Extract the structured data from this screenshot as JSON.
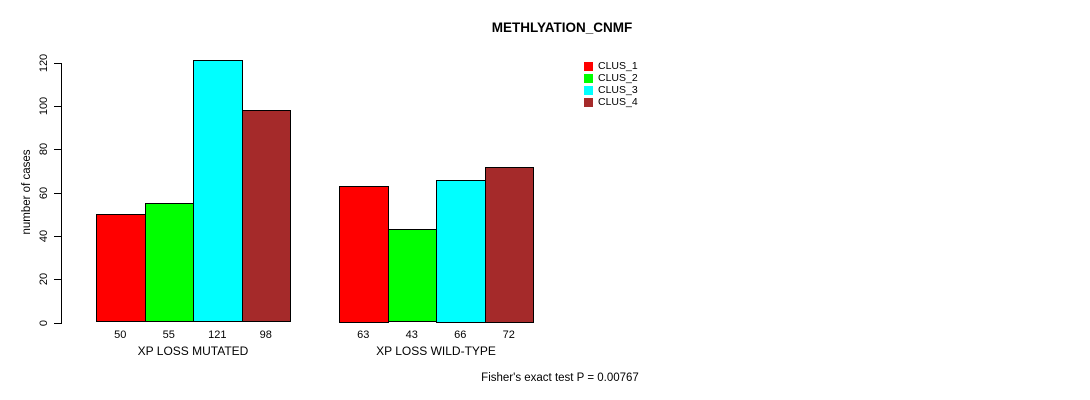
{
  "chart_data": {
    "type": "bar",
    "title": "METHLYATION_CNMF",
    "ylabel": "number of cases",
    "ylim": [
      0,
      120
    ],
    "yticks": [
      0,
      20,
      40,
      60,
      80,
      100,
      120
    ],
    "categories": [
      "XP LOSS MUTATED",
      "XP LOSS WILD-TYPE"
    ],
    "series": [
      {
        "name": "CLUS_1",
        "color": "#FF0000",
        "values": [
          50,
          63
        ]
      },
      {
        "name": "CLUS_2",
        "color": "#00FF00",
        "values": [
          55,
          43
        ]
      },
      {
        "name": "CLUS_3",
        "color": "#00FFFF",
        "values": [
          121,
          66
        ]
      },
      {
        "name": "CLUS_4",
        "color": "#A52A2A",
        "values": [
          98,
          72
        ]
      }
    ],
    "bar_value_labels": true,
    "legend_position": "top-right",
    "grid": false,
    "background_color": "#FFFFFF",
    "axis_color": "#000000",
    "annotation": "Fisher's exact test P = 0.00767"
  }
}
